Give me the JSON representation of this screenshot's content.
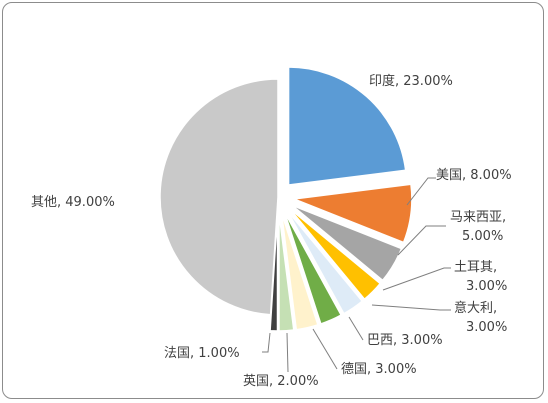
{
  "chart_data": {
    "type": "pie",
    "title": "",
    "slices": [
      {
        "name": "印度",
        "value": 23.0,
        "label_lines": [
          "印度, 23.00%"
        ],
        "color": "#5b9bd5",
        "explode": 16
      },
      {
        "name": "美国",
        "value": 8.0,
        "label_lines": [
          "美国, 8.00%"
        ],
        "color": "#ed7d31",
        "explode": 16
      },
      {
        "name": "马来西亚",
        "value": 5.0,
        "label_lines": [
          "马来西亚,",
          "5.00%"
        ],
        "color": "#a5a5a5",
        "explode": 16
      },
      {
        "name": "土耳其",
        "value": 3.0,
        "label_lines": [
          "土耳其,",
          "3.00%"
        ],
        "color": "#ffc000",
        "explode": 16
      },
      {
        "name": "意大利",
        "value": 3.0,
        "label_lines": [
          "意大利,",
          "3.00%"
        ],
        "color": "#deebf7",
        "explode": 16
      },
      {
        "name": "巴西",
        "value": 3.0,
        "label_lines": [
          "巴西, 3.00%"
        ],
        "color": "#70ad47",
        "explode": 16
      },
      {
        "name": "德国",
        "value": 3.0,
        "label_lines": [
          "德国, 3.00%"
        ],
        "color": "#fff2cc",
        "explode": 16
      },
      {
        "name": "英国",
        "value": 2.0,
        "label_lines": [
          "英国, 2.00%"
        ],
        "color": "#c5e0b4",
        "explode": 16
      },
      {
        "name": "法国",
        "value": 1.0,
        "label_lines": [
          "法国, 1.00%"
        ],
        "color": "#404040",
        "explode": 16
      },
      {
        "name": "其他",
        "value": 49.0,
        "label_lines": [
          "其他, 49.00%"
        ],
        "color": "#c9c9c9",
        "explode": 0
      }
    ]
  }
}
